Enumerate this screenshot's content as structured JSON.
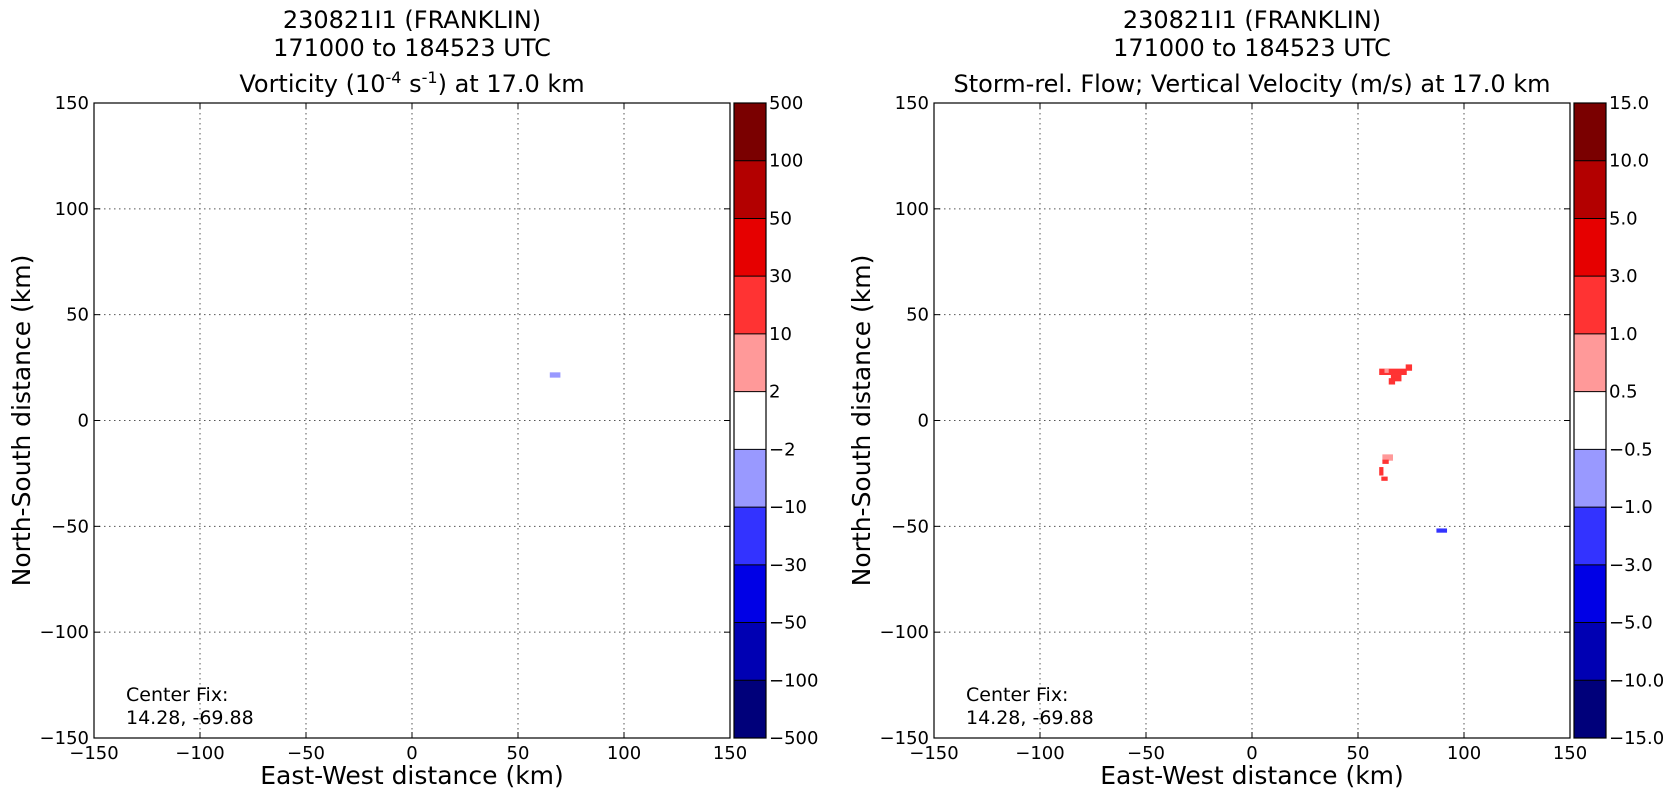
{
  "chart_data": [
    {
      "type": "heatmap",
      "title_lines": [
        "230821I1 (FRANKLIN)",
        "171000 to 184523 UTC"
      ],
      "title_third": {
        "prefix": "Vorticity (10",
        "sup1": "-4",
        "mid": " s",
        "sup2": "-1",
        "suffix": ") at 17.0 km"
      },
      "xlabel": "East-West distance (km)",
      "ylabel": "North-South distance (km)",
      "xlim": [
        -150,
        150
      ],
      "ylim": [
        -150,
        150
      ],
      "xticks": [
        -150,
        -100,
        -50,
        0,
        50,
        100,
        150
      ],
      "yticks": [
        -150,
        -100,
        -50,
        0,
        50,
        100,
        150
      ],
      "xtick_labels": [
        "−150",
        "−100",
        "−50",
        "0",
        "50",
        "100",
        "150"
      ],
      "ytick_labels": [
        "−150",
        "−100",
        "−50",
        "0",
        "50",
        "100",
        "150"
      ],
      "grid": true,
      "annotation_lines": [
        "Center Fix:",
        "14.28, -69.88"
      ],
      "colorbar": {
        "labels": [
          "500",
          "100",
          "50",
          "30",
          "10",
          "2",
          "−2",
          "−10",
          "−30",
          "−50",
          "−100",
          "−500"
        ],
        "colors_top_to_bottom": [
          "#7a0000",
          "#b30000",
          "#e60000",
          "#ff3333",
          "#ff9999",
          "#ffffff",
          "#9999ff",
          "#3333ff",
          "#0000e6",
          "#0000b3",
          "#00007a"
        ]
      },
      "features": [
        {
          "x": 67.5,
          "y": 21.5,
          "w": 5,
          "h": 2.5,
          "color": "#9999ff"
        }
      ]
    },
    {
      "type": "heatmap",
      "title_lines": [
        "230821I1 (FRANKLIN)",
        "171000 to 184523 UTC",
        "Storm-rel. Flow; Vertical Velocity (m/s) at 17.0 km"
      ],
      "xlabel": "East-West distance (km)",
      "ylabel": "North-South distance (km)",
      "xlim": [
        -150,
        150
      ],
      "ylim": [
        -150,
        150
      ],
      "xticks": [
        -150,
        -100,
        -50,
        0,
        50,
        100,
        150
      ],
      "yticks": [
        -150,
        -100,
        -50,
        0,
        50,
        100,
        150
      ],
      "xtick_labels": [
        "−150",
        "−100",
        "−50",
        "0",
        "50",
        "100",
        "150"
      ],
      "ytick_labels": [
        "−150",
        "−100",
        "−50",
        "0",
        "50",
        "100",
        "150"
      ],
      "grid": true,
      "annotation_lines": [
        "Center Fix:",
        "14.28, -69.88"
      ],
      "colorbar": {
        "labels": [
          "15.0",
          "10.0",
          "5.0",
          "3.0",
          "1.0",
          "0.5",
          "−0.5",
          "−1.0",
          "−3.0",
          "−5.0",
          "−10.0",
          "−15.0"
        ],
        "colors_top_to_bottom": [
          "#7a0000",
          "#b30000",
          "#e60000",
          "#ff3333",
          "#ff9999",
          "#ffffff",
          "#9999ff",
          "#3333ff",
          "#0000e6",
          "#0000b3",
          "#00007a"
        ]
      },
      "features": [
        {
          "x": 66.5,
          "y": 23,
          "w": 13,
          "h": 3,
          "color": "#ff3333"
        },
        {
          "x": 74,
          "y": 25,
          "w": 3,
          "h": 3,
          "color": "#ff3333"
        },
        {
          "x": 68,
          "y": 20,
          "w": 5,
          "h": 3,
          "color": "#ff3333"
        },
        {
          "x": 66,
          "y": 18.5,
          "w": 3,
          "h": 3,
          "color": "#ff3333"
        },
        {
          "x": 63.5,
          "y": 23.5,
          "w": 2,
          "h": 2,
          "color": "#ff9999"
        },
        {
          "x": 64,
          "y": -17.5,
          "w": 5,
          "h": 3,
          "color": "#ff9999"
        },
        {
          "x": 63,
          "y": -19.5,
          "w": 3,
          "h": 2,
          "color": "#ff3333"
        },
        {
          "x": 61,
          "y": -24,
          "w": 2,
          "h": 4,
          "color": "#ff3333"
        },
        {
          "x": 62.5,
          "y": -27.5,
          "w": 3,
          "h": 2,
          "color": "#ff3333"
        },
        {
          "x": 89.5,
          "y": -52,
          "w": 5,
          "h": 2,
          "color": "#3333ff"
        }
      ]
    }
  ]
}
